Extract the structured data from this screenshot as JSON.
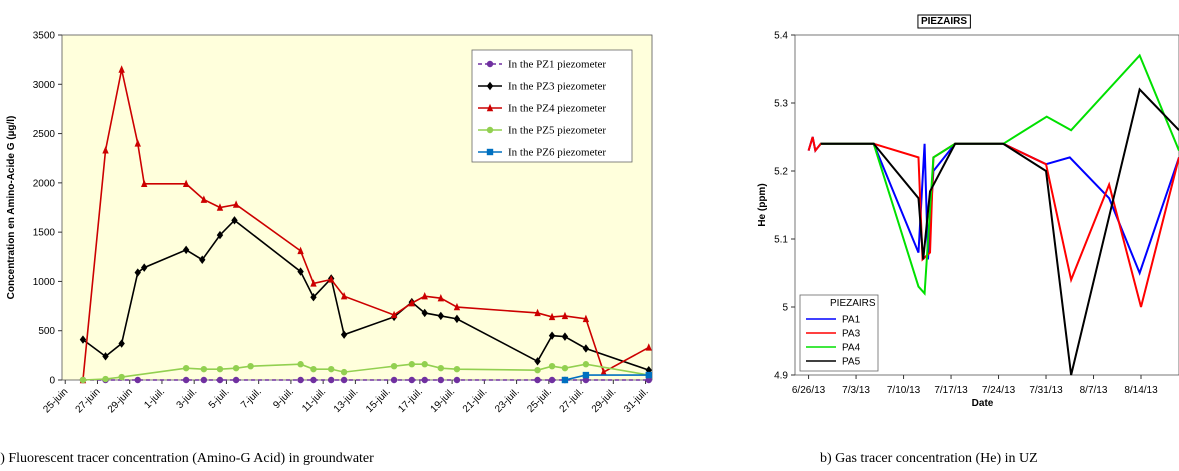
{
  "chart_data": [
    {
      "type": "line",
      "ylabel": "Concentration en Amino-Acide G (µg/l)",
      "caption": "a) Fluorescent tracer concentration (Amino-G Acid) in groundwater",
      "background": "#ffffdc",
      "legend": "upper right",
      "xlim": [
        -0.2,
        36.4
      ],
      "ylim": [
        0,
        3500
      ],
      "xticks": [
        {
          "value": 0,
          "label": "25-juin"
        },
        {
          "value": 2,
          "label": "27-juin"
        },
        {
          "value": 4,
          "label": "29-juin"
        },
        {
          "value": 6,
          "label": "1-juil."
        },
        {
          "value": 8,
          "label": "3-juil."
        },
        {
          "value": 10,
          "label": "5-juil."
        },
        {
          "value": 12,
          "label": "7-juil."
        },
        {
          "value": 14,
          "label": "9-juil."
        },
        {
          "value": 16,
          "label": "11-juil."
        },
        {
          "value": 18,
          "label": "13-juil."
        },
        {
          "value": 20,
          "label": "15-juil."
        },
        {
          "value": 22,
          "label": "17-juil."
        },
        {
          "value": 24,
          "label": "19-juil."
        },
        {
          "value": 26,
          "label": "21-juil."
        },
        {
          "value": 28,
          "label": "23-juil."
        },
        {
          "value": 30,
          "label": "25-juil."
        },
        {
          "value": 32,
          "label": "27-juil."
        },
        {
          "value": 34,
          "label": "29-juil."
        },
        {
          "value": 36,
          "label": "31-juil."
        }
      ],
      "yticks": [
        0,
        500,
        1000,
        1500,
        2000,
        2500,
        3000,
        3500
      ],
      "series": [
        {
          "name": "In the PZ1 piezometer",
          "color": "#7030a0",
          "marker": "circle",
          "dash": true,
          "x": [
            1.1,
            2.5,
            4.5,
            7.5,
            8.6,
            9.6,
            10.6,
            14.6,
            15.4,
            16.5,
            17.3,
            20.4,
            21.5,
            22.3,
            23.3,
            24.3,
            29.3,
            30.2,
            31.0,
            32.3,
            36.2
          ],
          "values": [
            0,
            0,
            0,
            0,
            0,
            0,
            0,
            0,
            0,
            0,
            0,
            0,
            0,
            0,
            0,
            0,
            0,
            0,
            0,
            0,
            0
          ]
        },
        {
          "name": "In the PZ3 piezometer",
          "color": "#000000",
          "marker": "diamond",
          "x": [
            1.1,
            2.5,
            3.5,
            4.5,
            4.9,
            7.5,
            8.5,
            9.6,
            10.5,
            14.6,
            15.4,
            16.5,
            17.3,
            20.4,
            21.5,
            22.3,
            23.3,
            24.3,
            29.3,
            30.2,
            31.0,
            32.3,
            36.2
          ],
          "values": [
            410,
            240,
            370,
            1090,
            1140,
            1320,
            1220,
            1470,
            1620,
            1100,
            840,
            1030,
            460,
            640,
            790,
            680,
            650,
            620,
            190,
            450,
            440,
            320,
            100
          ]
        },
        {
          "name": "In the PZ4 piezometer",
          "color": "#cc0000",
          "marker": "triangle",
          "x": [
            1.1,
            2.5,
            3.5,
            4.5,
            4.9,
            7.5,
            8.6,
            9.6,
            10.6,
            14.6,
            15.4,
            16.5,
            17.3,
            20.4,
            21.5,
            22.3,
            23.3,
            24.3,
            29.3,
            30.2,
            31.0,
            32.3,
            33.4,
            36.2
          ],
          "values": [
            0,
            2330,
            3150,
            2400,
            1990,
            1990,
            1830,
            1750,
            1780,
            1310,
            980,
            1020,
            850,
            660,
            780,
            850,
            830,
            740,
            680,
            640,
            650,
            620,
            80,
            330
          ]
        },
        {
          "name": "In the PZ5 piezometer",
          "color": "#92d050",
          "marker": "circle",
          "x": [
            1.1,
            2.5,
            3.5,
            7.5,
            8.6,
            9.6,
            10.6,
            11.5,
            14.6,
            15.4,
            16.5,
            17.3,
            20.4,
            21.5,
            22.3,
            23.3,
            24.3,
            29.3,
            30.2,
            31.0,
            32.3,
            36.2
          ],
          "values": [
            0,
            10,
            30,
            120,
            110,
            110,
            120,
            140,
            160,
            110,
            110,
            80,
            140,
            160,
            160,
            120,
            110,
            100,
            140,
            120,
            160,
            50
          ]
        },
        {
          "name": "In the PZ6 piezometer",
          "color": "#0070c0",
          "marker": "square",
          "x": [
            31.0,
            32.3,
            36.2
          ],
          "values": [
            0,
            50,
            50
          ]
        }
      ]
    },
    {
      "type": "line",
      "title": "PIEZAIRS",
      "xlabel": "Date",
      "ylabel": "He (ppm)",
      "caption": "b) Gas tracer concentration (He) in UZ",
      "background": "#ffffff",
      "legend": "lower left",
      "legend_title": "PIEZAIRS",
      "xlim": [
        -2,
        54.6
      ],
      "ylim": [
        4.9,
        5.4
      ],
      "xticks": [
        {
          "value": 0,
          "label": "6/26/13"
        },
        {
          "value": 7,
          "label": "7/3/13"
        },
        {
          "value": 14,
          "label": "7/10/13"
        },
        {
          "value": 21,
          "label": "7/17/13"
        },
        {
          "value": 28,
          "label": "7/24/13"
        },
        {
          "value": 35,
          "label": "7/31/13"
        },
        {
          "value": 42,
          "label": "8/7/13"
        },
        {
          "value": 49,
          "label": "8/14/13"
        }
      ],
      "yticks": [
        4.9,
        5,
        5.1,
        5.2,
        5.3,
        5.4
      ],
      "series": [
        {
          "name": "PA1",
          "color": "#0000ff",
          "x": [
            0,
            0.6,
            1.0,
            1.8,
            9.6,
            16.2,
            17.1,
            17.6,
            18.4,
            21.6,
            28.7,
            35.0,
            38.5,
            44.3,
            48.8,
            54.6
          ],
          "values": [
            5.23,
            5.25,
            5.23,
            5.24,
            5.24,
            5.08,
            5.24,
            5.07,
            5.2,
            5.24,
            5.24,
            5.21,
            5.22,
            5.16,
            5.05,
            5.22
          ]
        },
        {
          "name": "PA3",
          "color": "#ff0000",
          "x": [
            0,
            0.6,
            1.0,
            1.8,
            9.6,
            16.2,
            16.8,
            17.9,
            18.4,
            21.6,
            28.7,
            35.0,
            38.7,
            44.3,
            49.0,
            54.6
          ],
          "values": [
            5.23,
            5.25,
            5.23,
            5.24,
            5.24,
            5.22,
            5.07,
            5.08,
            5.22,
            5.24,
            5.24,
            5.21,
            5.04,
            5.18,
            5.0,
            5.22
          ]
        },
        {
          "name": "PA4",
          "color": "#00e000",
          "x": [
            1.8,
            9.6,
            16.2,
            17.1,
            18.4,
            21.6,
            28.7,
            35.1,
            38.7,
            48.8,
            54.6
          ],
          "values": [
            5.24,
            5.24,
            5.03,
            5.02,
            5.22,
            5.24,
            5.24,
            5.28,
            5.26,
            5.37,
            5.23
          ]
        },
        {
          "name": "PA5",
          "color": "#000000",
          "x": [
            1.8,
            9.6,
            16.2,
            16.9,
            17.9,
            21.6,
            28.7,
            35.0,
            38.7,
            48.8,
            54.6
          ],
          "values": [
            5.24,
            5.24,
            5.16,
            5.07,
            5.17,
            5.24,
            5.24,
            5.2,
            4.9,
            5.32,
            5.26
          ]
        }
      ]
    }
  ]
}
